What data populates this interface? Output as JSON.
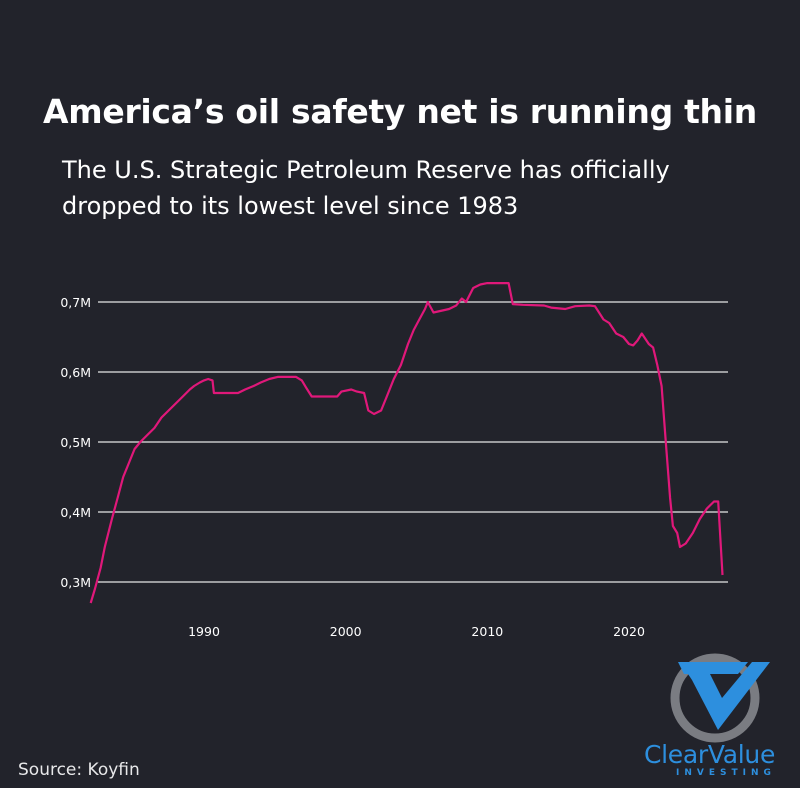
{
  "header": {
    "title": "America’s oil safety net is running thin",
    "subtitle_line1": "The U.S. Strategic Petroleum Reserve has officially",
    "subtitle_line2": "dropped to its lowest level since 1983"
  },
  "footer": {
    "source": "Source: Koyfin"
  },
  "brand": {
    "name": "ClearValue",
    "tagline": "INVESTING",
    "color": "#2d8fde",
    "ring_color": "#7a7c82"
  },
  "colors": {
    "background": "#22232b",
    "line": "#e0187a",
    "grid": "#e6e6e6",
    "text": "#ffffff"
  },
  "chart_data": {
    "type": "line",
    "title": "",
    "xlabel": "",
    "ylabel": "",
    "xlim": [
      1982,
      2026.7
    ],
    "ylim": [
      0.27,
      0.74
    ],
    "grid": "horizontal",
    "xticks": [
      {
        "value": 1990,
        "label": "1990"
      },
      {
        "value": 2000,
        "label": "2000"
      },
      {
        "value": 2010,
        "label": "2010"
      },
      {
        "value": 2020,
        "label": "2020"
      }
    ],
    "yticks": [
      {
        "value": 0.3,
        "label": "0,3M"
      },
      {
        "value": 0.4,
        "label": "0,4M"
      },
      {
        "value": 0.5,
        "label": "0,5M"
      },
      {
        "value": 0.6,
        "label": "0,6M"
      },
      {
        "value": 0.7,
        "label": "0,7M"
      }
    ],
    "series": [
      {
        "color": "#e0187a",
        "x": [
          1982.0,
          1982.3,
          1982.7,
          1983.0,
          1983.5,
          1983.9,
          1984.3,
          1984.7,
          1985.1,
          1985.5,
          1986.0,
          1986.5,
          1987.0,
          1987.5,
          1988.0,
          1988.5,
          1989.0,
          1989.3,
          1989.7,
          1990.0,
          1990.3,
          1990.6,
          1990.7,
          1991.2,
          1991.8,
          1992.4,
          1992.9,
          1993.5,
          1994.0,
          1994.6,
          1995.2,
          1996.0,
          1996.5,
          1996.9,
          1997.2,
          1997.6,
          1998.5,
          1999.4,
          1999.7,
          2000.4,
          2000.8,
          2001.3,
          2001.6,
          2002.0,
          2002.5,
          2002.9,
          2003.4,
          2003.9,
          2004.4,
          2004.8,
          2005.2,
          2005.6,
          2005.8,
          2006.2,
          2007.3,
          2007.8,
          2008.2,
          2008.5,
          2009.0,
          2009.5,
          2010.0,
          2010.5,
          2011.1,
          2011.5,
          2011.8,
          2012.5,
          2014.0,
          2014.5,
          2015.5,
          2016.2,
          2017.2,
          2017.6,
          2018.2,
          2018.6,
          2019.1,
          2019.6,
          2020.0,
          2020.3,
          2020.6,
          2020.9,
          2021.4,
          2021.7,
          2022.0,
          2022.3,
          2022.6,
          2022.9,
          2023.1,
          2023.4,
          2023.6,
          2024.0,
          2024.5,
          2025.0,
          2025.5,
          2026.0,
          2026.3,
          2026.6
        ],
        "y": [
          0.27,
          0.29,
          0.32,
          0.35,
          0.39,
          0.42,
          0.45,
          0.47,
          0.49,
          0.5,
          0.51,
          0.52,
          0.535,
          0.545,
          0.555,
          0.565,
          0.575,
          0.58,
          0.585,
          0.588,
          0.59,
          0.588,
          0.57,
          0.57,
          0.57,
          0.57,
          0.575,
          0.58,
          0.585,
          0.59,
          0.593,
          0.593,
          0.593,
          0.588,
          0.578,
          0.565,
          0.565,
          0.565,
          0.572,
          0.575,
          0.572,
          0.57,
          0.545,
          0.54,
          0.545,
          0.565,
          0.59,
          0.61,
          0.64,
          0.66,
          0.675,
          0.69,
          0.7,
          0.685,
          0.69,
          0.695,
          0.705,
          0.7,
          0.72,
          0.725,
          0.727,
          0.727,
          0.727,
          0.727,
          0.697,
          0.696,
          0.695,
          0.692,
          0.69,
          0.694,
          0.695,
          0.694,
          0.675,
          0.67,
          0.655,
          0.65,
          0.64,
          0.638,
          0.645,
          0.655,
          0.64,
          0.635,
          0.61,
          0.58,
          0.5,
          0.42,
          0.38,
          0.37,
          0.35,
          0.355,
          0.37,
          0.39,
          0.405,
          0.415,
          0.415,
          0.31
        ]
      }
    ]
  }
}
